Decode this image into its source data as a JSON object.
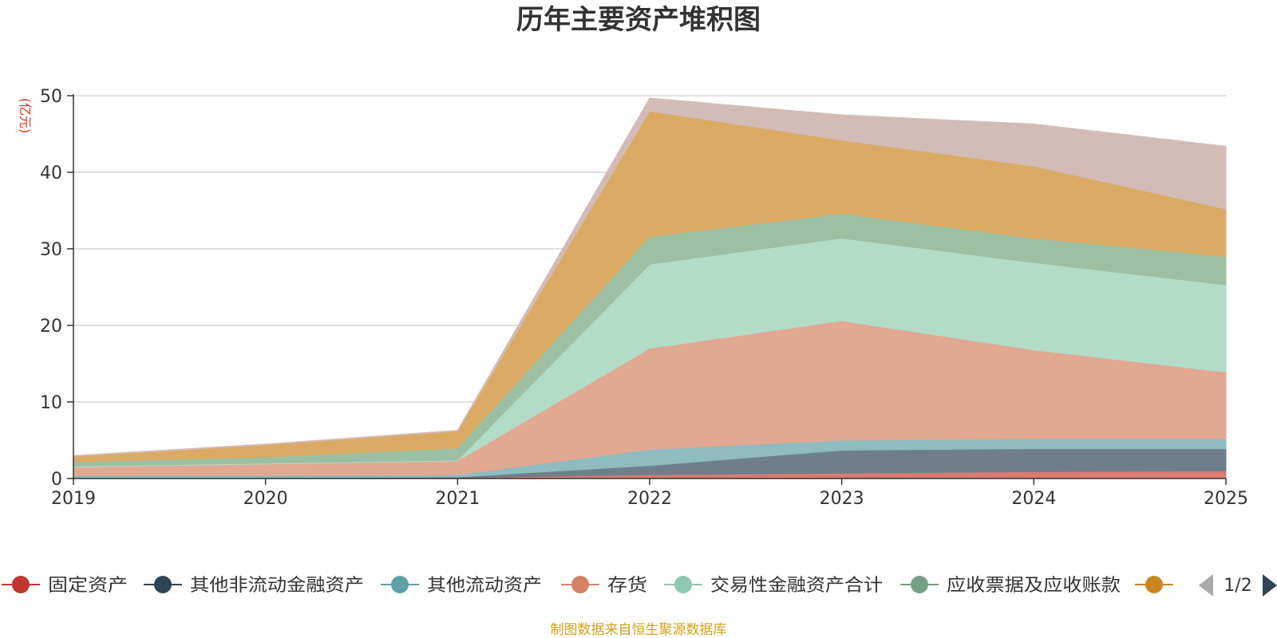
{
  "chart_data": {
    "type": "area",
    "stacked": true,
    "title": "历年主要资产堆积图",
    "ylabel": "(亿元)",
    "xlabel": "",
    "ylim": [
      0,
      50
    ],
    "y_ticks": [
      "0",
      "10",
      "20",
      "30",
      "40",
      "50"
    ],
    "grid": true,
    "categories": [
      "2019",
      "2020",
      "2021",
      "2022",
      "2023",
      "2024",
      "2025"
    ],
    "series": [
      {
        "name": "固定资产",
        "color": "#c23531",
        "fill": "#d97b73",
        "values": [
          0.1,
          0.1,
          0.1,
          0.5,
          0.7,
          0.9,
          1.0
        ]
      },
      {
        "name": "其他非流动金融资产",
        "color": "#2f4554",
        "fill": "#6f7f89",
        "values": [
          0,
          0,
          0.1,
          1.2,
          3.0,
          3.0,
          2.9
        ]
      },
      {
        "name": "其他流动资产",
        "color": "#61a0a8",
        "fill": "#8fbcc1",
        "values": [
          0.3,
          0.3,
          0.3,
          2.1,
          1.3,
          1.3,
          1.3
        ]
      },
      {
        "name": "存货",
        "color": "#d48265",
        "fill": "#e1a892",
        "values": [
          1.1,
          1.5,
          1.8,
          13.2,
          15.6,
          11.6,
          8.7
        ]
      },
      {
        "name": "交易性金融资产合计",
        "color": "#91c7ae",
        "fill": "#b2dbc8",
        "values": [
          0.1,
          0.1,
          0.1,
          11.0,
          10.8,
          11.4,
          11.4
        ]
      },
      {
        "name": "应收票据及应收账款",
        "color": "#749f83",
        "fill": "#9dbfa2",
        "values": [
          0.6,
          0.8,
          1.6,
          3.6,
          3.2,
          3.2,
          3.7
        ]
      },
      {
        "name": "",
        "color": "#ca8622",
        "fill": "#dbaa64",
        "values": [
          0.7,
          1.6,
          2.2,
          16.4,
          9.6,
          9.4,
          6.2
        ]
      },
      {
        "name": "",
        "color": "#bda29a",
        "fill": "#d2bcb5",
        "values": [
          0.1,
          0.1,
          0.1,
          1.7,
          3.3,
          5.5,
          8.2
        ]
      }
    ]
  },
  "legend": {
    "page_indicator": "1/2",
    "prev_icon": "triangle-left-icon",
    "next_icon": "triangle-right-icon"
  },
  "source_note": "制图数据来自恒生聚源数据库"
}
